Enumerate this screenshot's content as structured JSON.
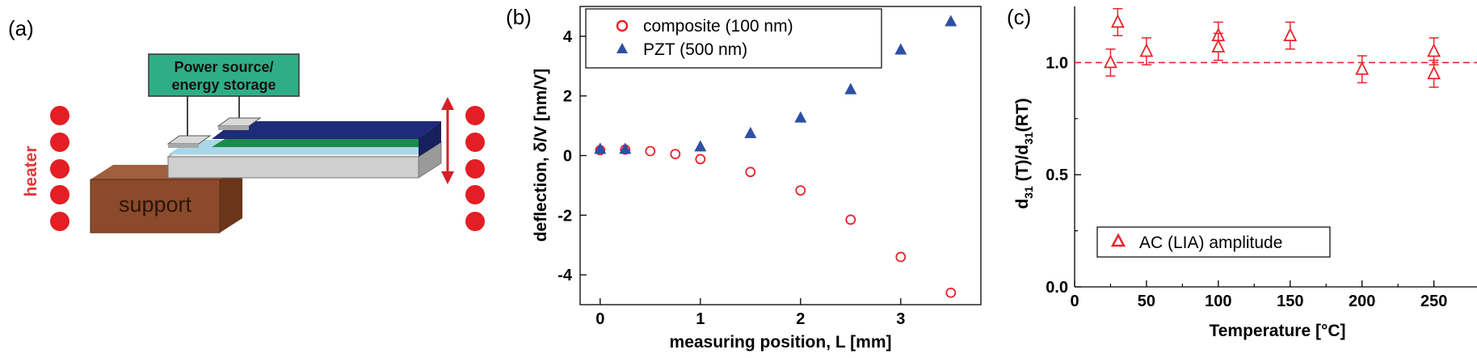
{
  "panels": {
    "a": {
      "label": "(a)",
      "power_line1": "Power source/",
      "power_line2": "energy storage",
      "support": "support",
      "heater": "heater"
    },
    "b": {
      "label": "(b)"
    },
    "c": {
      "label": "(c)"
    }
  },
  "colors": {
    "red": "#e8242a",
    "blue": "#2e4fa3",
    "support": "#8b4a2b",
    "power": "#2fae86",
    "heater": "#e31e24"
  },
  "chart_data": [
    {
      "type": "scatter",
      "panel": "b",
      "xlabel": "measuring position, L [mm]",
      "ylabel": "deflection, δ/V [nm/V]",
      "xlim": [
        -0.2,
        3.8
      ],
      "ylim": [
        -5.0,
        5.0
      ],
      "xticks": [
        "0",
        "1",
        "2",
        "3"
      ],
      "yticks": [
        "-4",
        "-2",
        "0",
        "2",
        "4"
      ],
      "legend_position": "top",
      "series": [
        {
          "name": "composite (100 nm)",
          "marker": "open-circle",
          "color": "#e8242a",
          "x": [
            0,
            0.25,
            0.5,
            0.75,
            1.0,
            1.5,
            2.0,
            2.5,
            3.0,
            3.5
          ],
          "y": [
            0.18,
            0.2,
            0.15,
            0.05,
            -0.12,
            -0.55,
            -1.17,
            -2.15,
            -3.4,
            -4.6
          ]
        },
        {
          "name": "PZT (500 nm)",
          "marker": "filled-triangle",
          "color": "#2e4fa3",
          "x": [
            0,
            0.25,
            1.0,
            1.5,
            2.0,
            2.5,
            3.0,
            3.5
          ],
          "y": [
            0.22,
            0.22,
            0.3,
            0.75,
            1.27,
            2.22,
            3.55,
            4.5
          ]
        }
      ]
    },
    {
      "type": "scatter",
      "panel": "c",
      "xlabel": "Temperature [°C]",
      "ylabel_main": "d",
      "ylabel_sub1": "31",
      "ylabel_mid": " (T)/d",
      "ylabel_sub2": "31",
      "ylabel_end": "(RT)",
      "xlim": [
        0,
        280
      ],
      "ylim": [
        0.0,
        1.25
      ],
      "xticks": [
        "0",
        "50",
        "100",
        "150",
        "200",
        "250"
      ],
      "yticks": [
        "0.0",
        "0.5",
        "1.0"
      ],
      "reference_line": 1.0,
      "legend_position": "bottom-center",
      "series": [
        {
          "name": "AC (LIA) amplitude",
          "marker": "open-triangle",
          "color": "#e8242a",
          "x": [
            25,
            30,
            50,
            100,
            100,
            150,
            200,
            250,
            250
          ],
          "y": [
            1.0,
            1.18,
            1.05,
            1.12,
            1.07,
            1.12,
            0.97,
            1.05,
            0.95
          ],
          "error": [
            0.06,
            0.06,
            0.06,
            0.06,
            0.06,
            0.06,
            0.06,
            0.06,
            0.06
          ]
        }
      ]
    }
  ]
}
